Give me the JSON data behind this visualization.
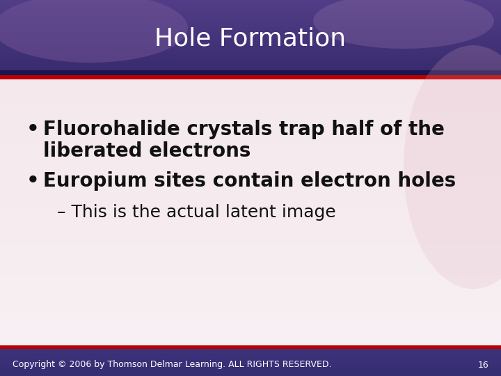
{
  "title": "Hole Formation",
  "title_color": "#ffffff",
  "title_fontsize": 26,
  "bullet1_line1": "Fluorohalide crystals trap half of the",
  "bullet1_line2": "liberated electrons",
  "bullet2": "Europium sites contain electron holes",
  "sub_bullet": "– This is the actual latent image",
  "bullet_fontsize": 20,
  "sub_bullet_fontsize": 18,
  "bullet_color": "#111111",
  "sub_bullet_color": "#111111",
  "footer_text": "Copyright © 2006 by Thomson Delmar Learning. ALL RIGHTS RESERVED.",
  "footer_page": "16",
  "footer_color": "#ffffff",
  "footer_fontsize": 9,
  "red_bar_color": "#bb0000",
  "dark_bar_color": "#1a1550",
  "header_top_color": "#4a3a7a",
  "header_bottom_color": "#3a2d68",
  "content_bg": "#f5edf2",
  "footer_bg": "#3d3575"
}
